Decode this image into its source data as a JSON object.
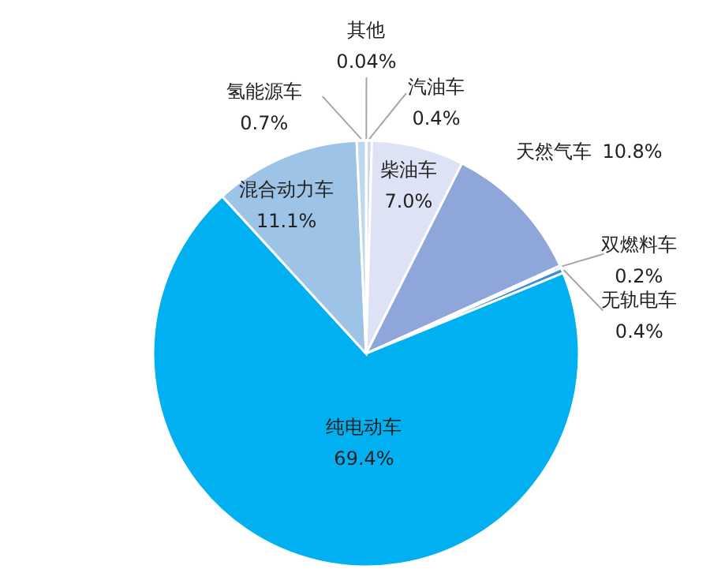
{
  "chart_data": {
    "type": "pie",
    "categories": [
      "其他",
      "汽油车",
      "柴油车",
      "天然气车",
      "双燃料车",
      "无轨电车",
      "纯电动车",
      "混合动力车",
      "氢能源车"
    ],
    "values": [
      0.04,
      0.4,
      7.0,
      10.8,
      0.2,
      0.4,
      69.4,
      11.1,
      0.7
    ],
    "colors": [
      "#8e9bc4",
      "#cfd8ef",
      "#dde3f4",
      "#8ea6da",
      "#5b7fcb",
      "#3a8fd8",
      "#00b0f0",
      "#9dc3e6",
      "#bdd7ee"
    ],
    "value_labels": [
      "0.04%",
      "0.4%",
      "7.0%",
      "10.8%",
      "0.2%",
      "0.4%",
      "69.4%",
      "11.1%",
      "0.7%"
    ]
  }
}
